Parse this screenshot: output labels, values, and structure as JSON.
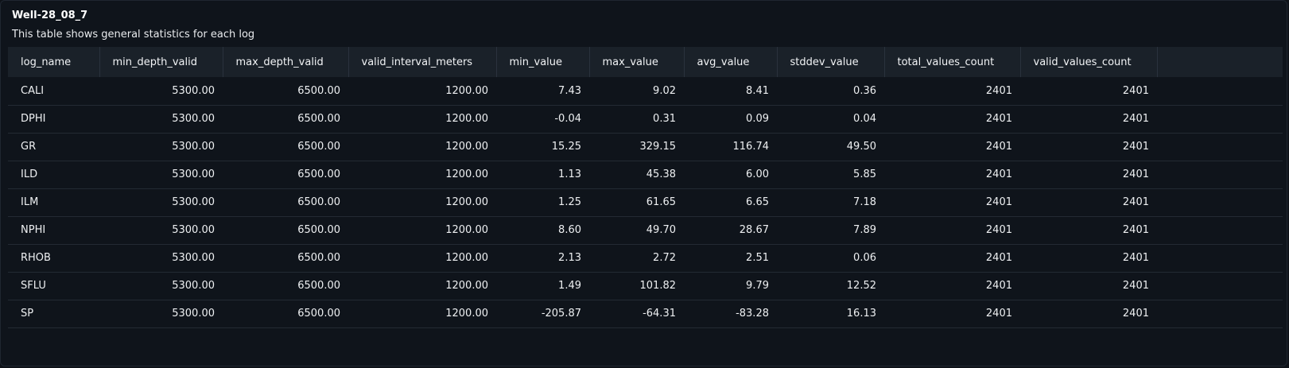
{
  "header": {
    "title": "Well-28_08_7",
    "subtitle": "This table shows general statistics for each log"
  },
  "table": {
    "columns": [
      "log_name",
      "min_depth_valid",
      "max_depth_valid",
      "valid_interval_meters",
      "min_value",
      "max_value",
      "avg_value",
      "stddev_value",
      "total_values_count",
      "valid_values_count"
    ],
    "rows": [
      [
        "CALI",
        "5300.00",
        "6500.00",
        "1200.00",
        "7.43",
        "9.02",
        "8.41",
        "0.36",
        "2401",
        "2401"
      ],
      [
        "DPHI",
        "5300.00",
        "6500.00",
        "1200.00",
        "-0.04",
        "0.31",
        "0.09",
        "0.04",
        "2401",
        "2401"
      ],
      [
        "GR",
        "5300.00",
        "6500.00",
        "1200.00",
        "15.25",
        "329.15",
        "116.74",
        "49.50",
        "2401",
        "2401"
      ],
      [
        "ILD",
        "5300.00",
        "6500.00",
        "1200.00",
        "1.13",
        "45.38",
        "6.00",
        "5.85",
        "2401",
        "2401"
      ],
      [
        "ILM",
        "5300.00",
        "6500.00",
        "1200.00",
        "1.25",
        "61.65",
        "6.65",
        "7.18",
        "2401",
        "2401"
      ],
      [
        "NPHI",
        "5300.00",
        "6500.00",
        "1200.00",
        "8.60",
        "49.70",
        "28.67",
        "7.89",
        "2401",
        "2401"
      ],
      [
        "RHOB",
        "5300.00",
        "6500.00",
        "1200.00",
        "2.13",
        "2.72",
        "2.51",
        "0.06",
        "2401",
        "2401"
      ],
      [
        "SFLU",
        "5300.00",
        "6500.00",
        "1200.00",
        "1.49",
        "101.82",
        "9.79",
        "12.52",
        "2401",
        "2401"
      ],
      [
        "SP",
        "5300.00",
        "6500.00",
        "1200.00",
        "-205.87",
        "-64.31",
        "-83.28",
        "16.13",
        "2401",
        "2401"
      ]
    ]
  }
}
